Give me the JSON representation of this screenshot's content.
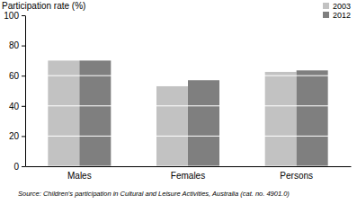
{
  "chart_data": {
    "type": "bar",
    "y_label": "Participation rate (%)",
    "categories": [
      "Males",
      "Females",
      "Persons"
    ],
    "series": [
      {
        "name": "2003",
        "color": "#c2c2c2",
        "values": [
          70,
          53,
          62.5
        ]
      },
      {
        "name": "2012",
        "color": "#7f7f7f",
        "values": [
          70,
          57,
          63.5
        ]
      }
    ],
    "ylim": [
      0,
      100
    ],
    "yticks": [
      0,
      20,
      40,
      60,
      80,
      100
    ],
    "grid": true,
    "legend": "top-right",
    "annotations": [
      "Source: Children's participation in Cultural and Leisure Activities, Australia (cat. no. 4901.0)"
    ]
  }
}
